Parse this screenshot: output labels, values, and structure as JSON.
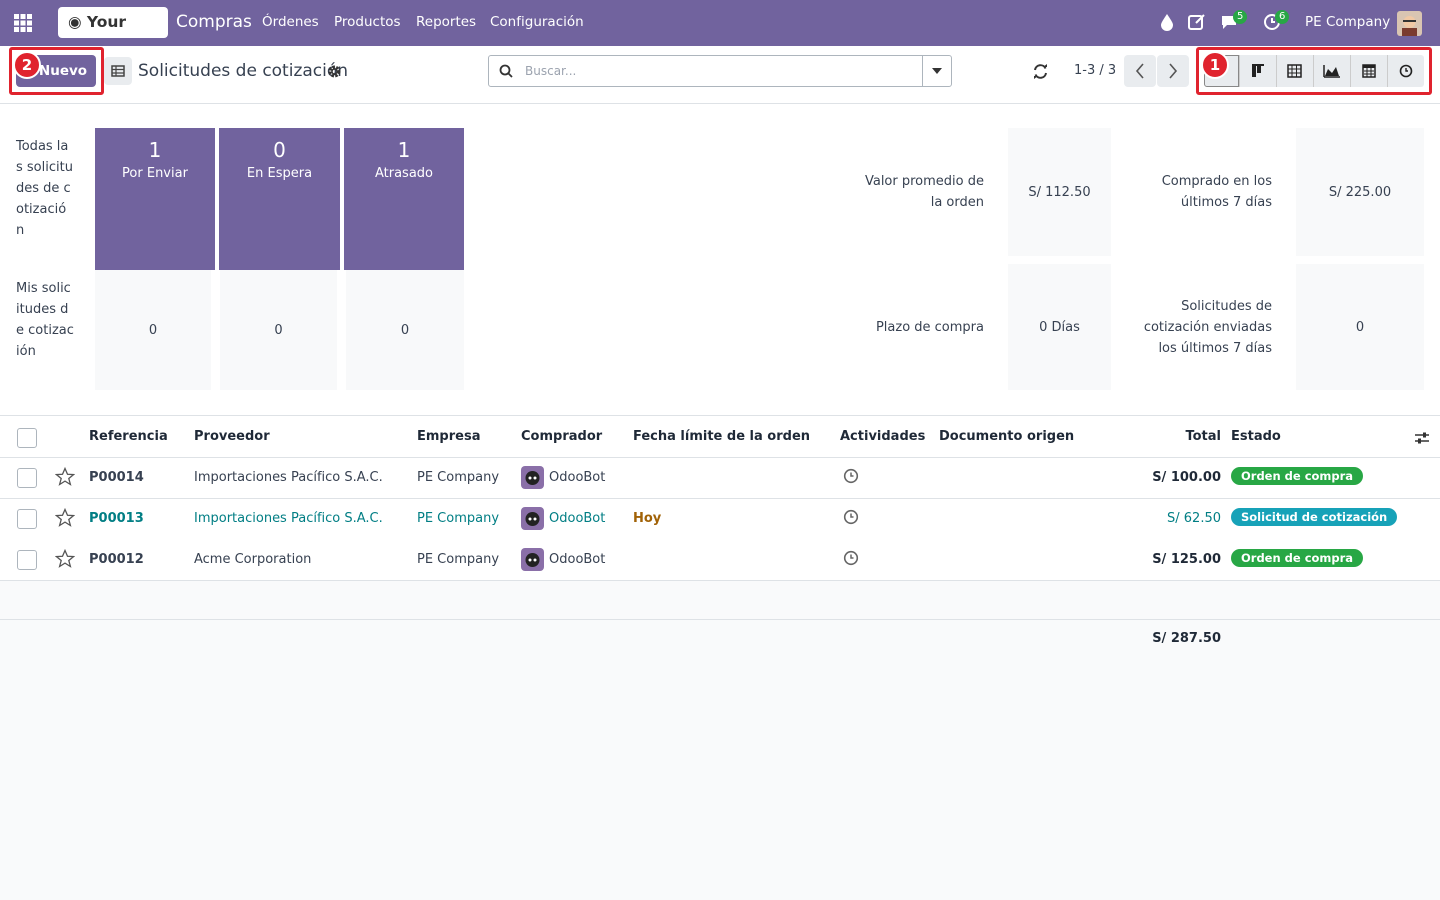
{
  "navbar": {
    "logo": "Your logo",
    "app": "Compras",
    "menu": [
      "Órdenes",
      "Productos",
      "Reportes",
      "Configuración"
    ],
    "messages_badge": 5,
    "activities_badge": 6,
    "company": "PE Company"
  },
  "control": {
    "new_button": "Nuevo",
    "breadcrumb": "Solicitudes de cotización",
    "search_placeholder": "Buscar...",
    "pager": "1-3 / 3",
    "annotations": [
      1,
      2
    ]
  },
  "dashboard": {
    "rows": [
      "Todas las solicitudes de cotización",
      "Mis solicitudes de cotización"
    ],
    "top_tiles": [
      {
        "value": 1,
        "label": "Por Enviar"
      },
      {
        "value": 0,
        "label": "En Espera"
      },
      {
        "value": 1,
        "label": "Atrasado"
      }
    ],
    "bottom_tiles": [
      0,
      0,
      0
    ],
    "stats": [
      {
        "label": "Valor promedio de la orden",
        "value": "S/ 112.50"
      },
      {
        "label": "Comprado en los últimos 7 días",
        "value": "S/ 225.00"
      },
      {
        "label": "Plazo de compra",
        "value": "0 Días"
      },
      {
        "label": "Solicitudes de cotización enviadas los últimos 7 días",
        "value": 0
      }
    ]
  },
  "table": {
    "headers": [
      "Referencia",
      "Proveedor",
      "Empresa",
      "Comprador",
      "Fecha límite de la orden",
      "Actividades",
      "Documento origen",
      "Total",
      "Estado"
    ],
    "rows": [
      {
        "reference": "P00014",
        "vendor": "Importaciones Pacífico S.A.C.",
        "company": "PE Company",
        "buyer": "OdooBot",
        "total": "S/ 100.00",
        "status": "Orden de compra",
        "status_color": "#28a745",
        "link_color": "#374151"
      },
      {
        "reference": "P00013",
        "vendor": "Importaciones Pacífico S.A.C.",
        "company": "PE Company",
        "buyer": "OdooBot",
        "deadline": "Hoy",
        "total": "S/ 62.50",
        "status": "Solicitud de cotización",
        "status_color": "#17a2b8",
        "link_color": "#017e84"
      },
      {
        "reference": "P00012",
        "vendor": "Acme Corporation",
        "company": "PE Company",
        "buyer": "OdooBot",
        "total": "S/ 125.00",
        "status": "Orden de compra",
        "status_color": "#28a745",
        "link_color": "#374151"
      }
    ],
    "grand_total": "S/ 287.50"
  }
}
